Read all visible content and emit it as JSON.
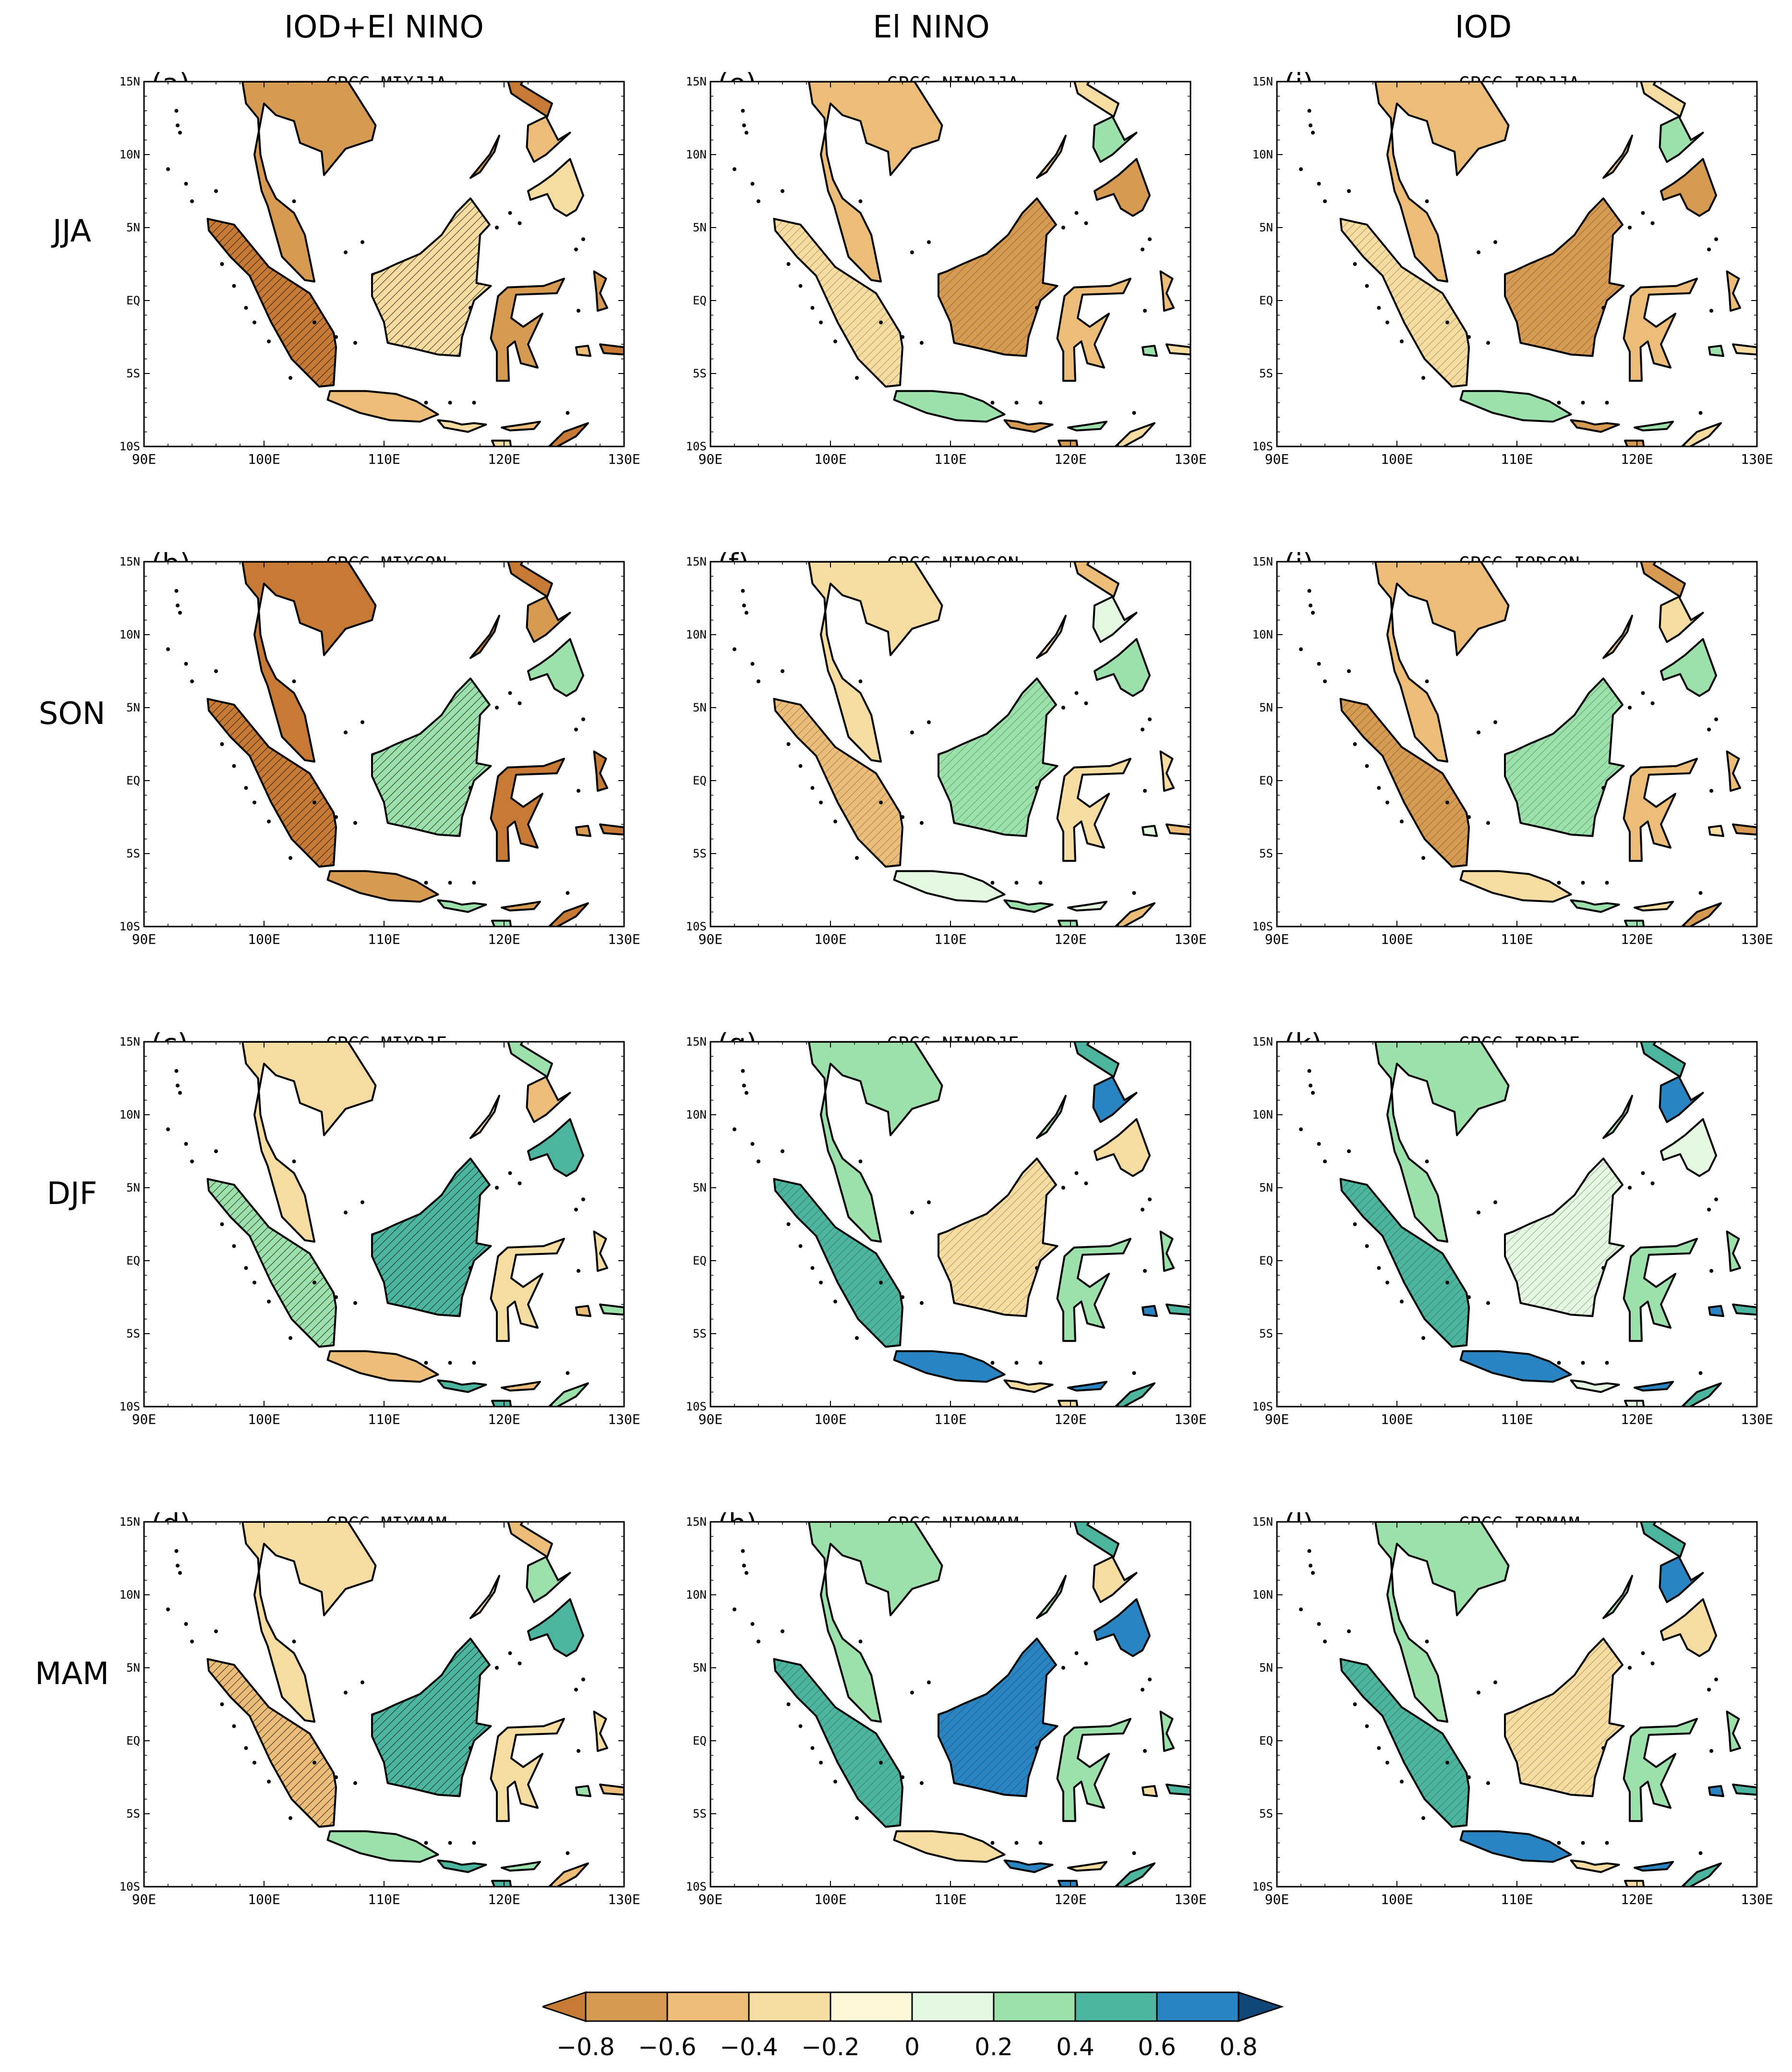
{
  "columns": [
    "IOD+El NINO",
    "El NINO",
    "IOD"
  ],
  "rows": [
    "JJA",
    "SON",
    "DJF",
    "MAM"
  ],
  "panels": [
    {
      "letter": "(a)",
      "title": "GPCC_MIXJJA"
    },
    {
      "letter": "(e)",
      "title": "GPCC_NINOJJA"
    },
    {
      "letter": "(i)",
      "title": "GPCC_IODJJA"
    },
    {
      "letter": "(b)",
      "title": "GPCC_MIXSON"
    },
    {
      "letter": "(f)",
      "title": "GPCC_NINOSON"
    },
    {
      "letter": "(j)",
      "title": "GPCC_IODSON"
    },
    {
      "letter": "(c)",
      "title": "GPCC_MIXDJF"
    },
    {
      "letter": "(g)",
      "title": "GPCC_NINODJF"
    },
    {
      "letter": "(k)",
      "title": "GPCC_IODDJF"
    },
    {
      "letter": "(d)",
      "title": "GPCC_MIXMAM"
    },
    {
      "letter": "(h)",
      "title": "GPCC_NINOMAM"
    },
    {
      "letter": "(l)",
      "title": "GPCC_IODMAM"
    }
  ],
  "lat_ticks": [
    "15N",
    "10N",
    "5N",
    "EQ",
    "5S",
    "10S"
  ],
  "lon_ticks": [
    "90E",
    "100E",
    "110E",
    "120E",
    "130E"
  ],
  "colorbar": {
    "labels": [
      "−0.8",
      "−0.6",
      "−0.4",
      "−0.2",
      "0",
      "0.2",
      "0.4",
      "0.6",
      "0.8"
    ],
    "colors": [
      "#c67a35",
      "#d79a52",
      "#ebbd78",
      "#f6dca0",
      "#fdf7d5",
      "#e4f7e0",
      "#9ce0ac",
      "#4db59f",
      "#2a84c2",
      "#11467a"
    ]
  },
  "panel_colors": [
    [
      "#d79a52",
      "#c67a35",
      "#ebbd78",
      "#f6dca0"
    ],
    [
      "#ebbd78",
      "#f6dca0",
      "#9ce0ac",
      "#d79a52"
    ],
    [
      "#ebbd78",
      "#f6dca0",
      "#9ce0ac",
      "#d79a52"
    ],
    [
      "#c67a35",
      "#c67a35",
      "#d79a52",
      "#9ce0ac"
    ],
    [
      "#f6dca0",
      "#ebbd78",
      "#e4f7e0",
      "#9ce0ac"
    ],
    [
      "#ebbd78",
      "#d79a52",
      "#f6dca0",
      "#9ce0ac"
    ],
    [
      "#f6dca0",
      "#9ce0ac",
      "#ebbd78",
      "#4db59f"
    ],
    [
      "#9ce0ac",
      "#4db59f",
      "#2a84c2",
      "#f6dca0"
    ],
    [
      "#9ce0ac",
      "#4db59f",
      "#2a84c2",
      "#e4f7e0"
    ],
    [
      "#f6dca0",
      "#ebbd78",
      "#9ce0ac",
      "#4db59f"
    ],
    [
      "#9ce0ac",
      "#4db59f",
      "#f6dca0",
      "#2a84c2"
    ],
    [
      "#9ce0ac",
      "#4db59f",
      "#2a84c2",
      "#f6dca0"
    ]
  ]
}
